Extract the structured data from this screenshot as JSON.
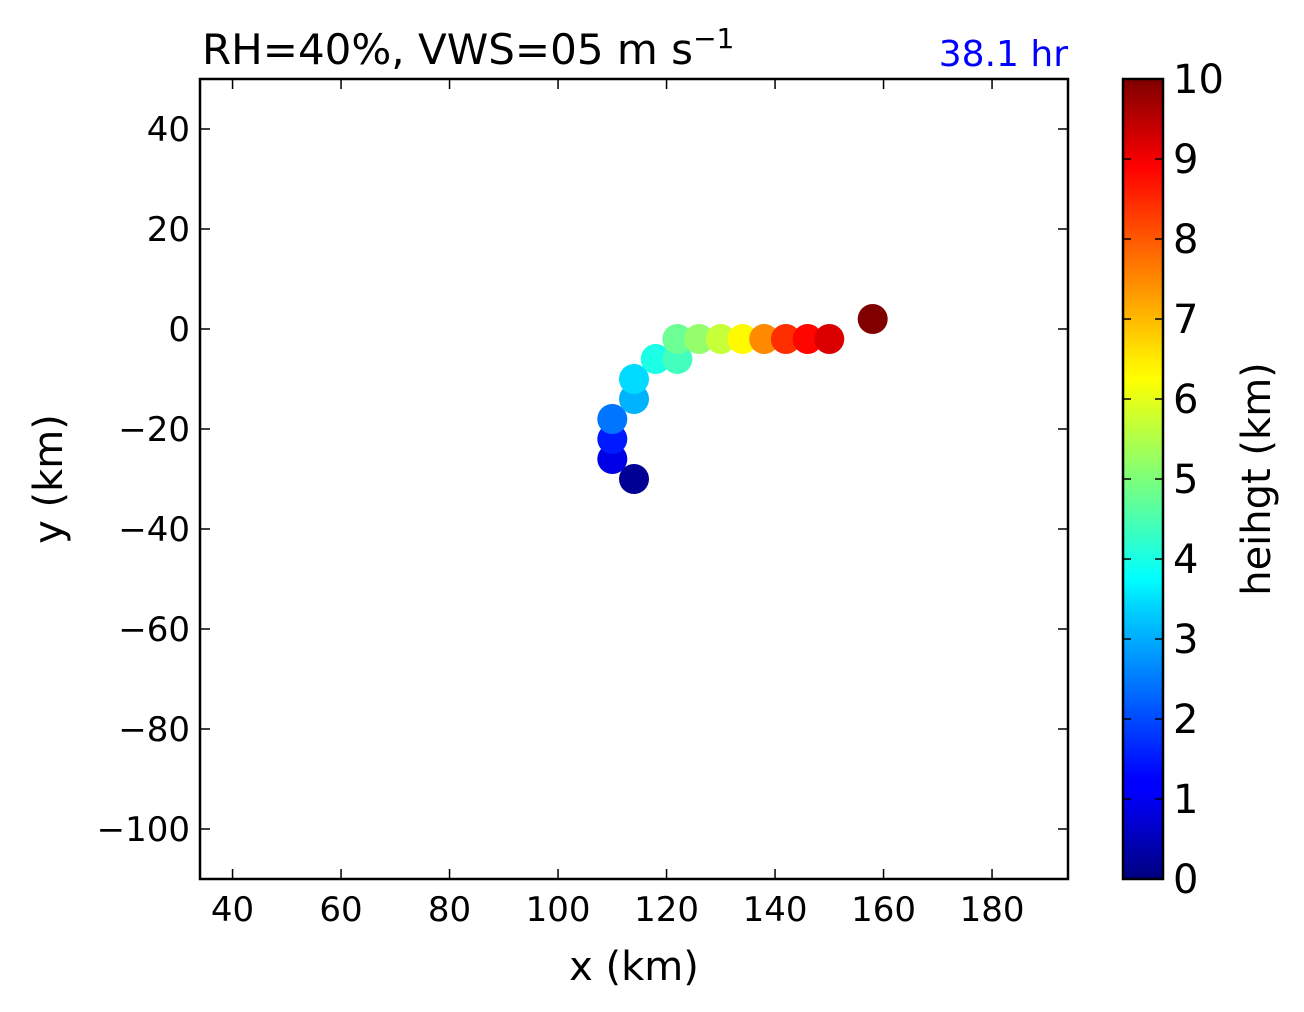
{
  "chart_data": {
    "type": "scatter",
    "title": "RH=40%, VWS=05 m s",
    "title_superscript": "−1",
    "time_label": "38.1 hr",
    "xlabel": "x (km)",
    "ylabel": "y (km)",
    "xlim": [
      34,
      194
    ],
    "ylim": [
      -110,
      50
    ],
    "xticks": [
      40,
      60,
      80,
      100,
      120,
      140,
      160,
      180
    ],
    "xtick_labels": [
      "40",
      "60",
      "80",
      "100",
      "120",
      "140",
      "160",
      "180"
    ],
    "yticks": [
      40,
      20,
      0,
      -20,
      -40,
      -60,
      -80,
      -100
    ],
    "ytick_labels": [
      "40",
      "20",
      "0",
      "−20",
      "−40",
      "−60",
      "−80",
      "−100"
    ],
    "grid": false,
    "colormap": "jet",
    "colorbar": {
      "label": "heihgt (km)",
      "min": 0,
      "max": 10,
      "ticks": [
        0,
        1,
        2,
        3,
        4,
        5,
        6,
        7,
        8,
        9,
        10
      ],
      "tick_labels": [
        "0",
        "1",
        "2",
        "3",
        "4",
        "5",
        "6",
        "7",
        "8",
        "9",
        "10"
      ]
    },
    "points": [
      {
        "x": 114,
        "y": -30,
        "height": 0.2
      },
      {
        "x": 110,
        "y": -26,
        "height": 1.0
      },
      {
        "x": 110,
        "y": -22,
        "height": 1.5
      },
      {
        "x": 110,
        "y": -18,
        "height": 2.4
      },
      {
        "x": 114,
        "y": -14,
        "height": 3.0
      },
      {
        "x": 114,
        "y": -10,
        "height": 3.4
      },
      {
        "x": 118,
        "y": -6,
        "height": 4.0
      },
      {
        "x": 122,
        "y": -6,
        "height": 4.4
      },
      {
        "x": 122,
        "y": -2,
        "height": 4.8
      },
      {
        "x": 126,
        "y": -2,
        "height": 5.2
      },
      {
        "x": 130,
        "y": -2,
        "height": 5.7
      },
      {
        "x": 134,
        "y": -2,
        "height": 6.3
      },
      {
        "x": 138,
        "y": -2,
        "height": 7.4
      },
      {
        "x": 142,
        "y": -2,
        "height": 8.3
      },
      {
        "x": 146,
        "y": -2,
        "height": 8.7
      },
      {
        "x": 150,
        "y": -2,
        "height": 9.1
      },
      {
        "x": 158,
        "y": 2,
        "height": 10.0
      }
    ]
  }
}
